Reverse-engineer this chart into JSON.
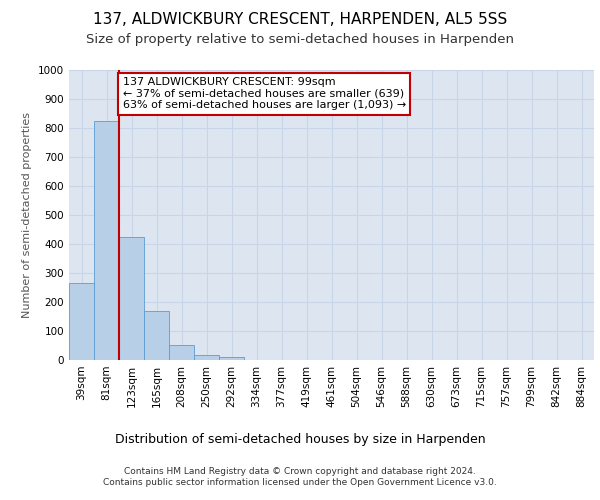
{
  "title_line1": "137, ALDWICKBURY CRESCENT, HARPENDEN, AL5 5SS",
  "title_line2": "Size of property relative to semi-detached houses in Harpenden",
  "xlabel": "Distribution of semi-detached houses by size in Harpenden",
  "ylabel": "Number of semi-detached properties",
  "categories": [
    "39sqm",
    "81sqm",
    "123sqm",
    "165sqm",
    "208sqm",
    "250sqm",
    "292sqm",
    "334sqm",
    "377sqm",
    "419sqm",
    "461sqm",
    "504sqm",
    "546sqm",
    "588sqm",
    "630sqm",
    "673sqm",
    "715sqm",
    "757sqm",
    "799sqm",
    "842sqm",
    "884sqm"
  ],
  "values": [
    265,
    825,
    425,
    168,
    52,
    16,
    10,
    0,
    0,
    0,
    0,
    0,
    0,
    0,
    0,
    0,
    0,
    0,
    0,
    0,
    0
  ],
  "bar_color": "#b8cfe8",
  "bar_edge_color": "#5b9bd5",
  "vline_x_index": 1.5,
  "vline_color": "#c00000",
  "annotation_text": "137 ALDWICKBURY CRESCENT: 99sqm\n← 37% of semi-detached houses are smaller (639)\n63% of semi-detached houses are larger (1,093) →",
  "annotation_box_color": "#ffffff",
  "annotation_box_edge_color": "#c00000",
  "ylim": [
    0,
    1000
  ],
  "yticks": [
    0,
    100,
    200,
    300,
    400,
    500,
    600,
    700,
    800,
    900,
    1000
  ],
  "grid_color": "#c8d4e8",
  "bg_color": "#dde6f0",
  "footer_text": "Contains HM Land Registry data © Crown copyright and database right 2024.\nContains public sector information licensed under the Open Government Licence v3.0.",
  "title_fontsize": 11,
  "subtitle_fontsize": 9.5,
  "ylabel_fontsize": 8,
  "xlabel_fontsize": 9,
  "tick_fontsize": 7.5,
  "annotation_fontsize": 8,
  "footer_fontsize": 6.5
}
